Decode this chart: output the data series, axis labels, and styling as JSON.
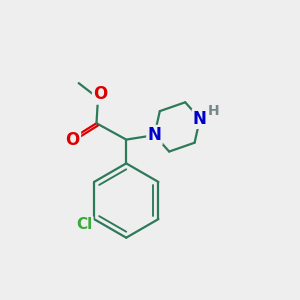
{
  "background_color": "#eeeeee",
  "bond_color": "#2d7a5a",
  "bond_width": 1.6,
  "atom_colors": {
    "O": "#dd0000",
    "N": "#0000cc",
    "Cl": "#3aaa3a",
    "H": "#778888",
    "C": "#000000"
  },
  "font_size": 11,
  "fig_size": [
    3.0,
    3.0
  ],
  "dpi": 100,
  "xlim": [
    0,
    10
  ],
  "ylim": [
    0,
    10
  ]
}
